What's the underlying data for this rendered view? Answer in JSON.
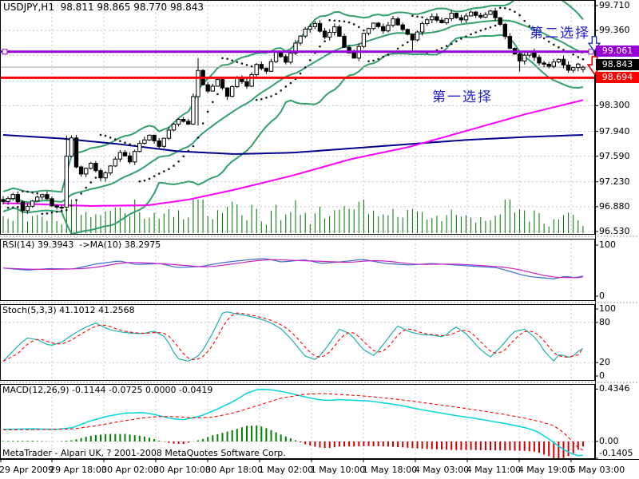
{
  "title": "USDJPY,H1  98.811 98.865 98.770 98.843",
  "copyright": "MetaTrader - Alpari UK, ? 2001-2008 MetaQuotes Software Corp.",
  "annotations": {
    "second_choice": "第二选择",
    "first_choice": "第一选择"
  },
  "badges": {
    "resistance": "99.061",
    "bid": "98.843",
    "support": "98.694"
  },
  "panels": {
    "rsi": {
      "label": "RSI(14) 39.3943  ->MA(10) 38.2975",
      "scale": [
        {
          "text": "100",
          "v": 100
        },
        {
          "text": "0",
          "v": 0
        }
      ]
    },
    "stoch": {
      "label": "Stoch(5,3,3) 41.1012 41.2568",
      "scale": [
        {
          "text": "100",
          "v": 100
        },
        {
          "text": "80",
          "v": 80
        },
        {
          "text": "20",
          "v": 20
        },
        {
          "text": "0",
          "v": 0
        }
      ]
    },
    "macd": {
      "label": "MACD(12,26,9) -0.1144 -0.0725 0.0000 -0.0419",
      "scale": [
        {
          "text": "0.4346",
          "v": 0.4346
        },
        {
          "text": "0.00",
          "v": 0
        },
        {
          "text": "-0.1405",
          "v": -0.1405
        }
      ]
    }
  },
  "price_axis": [
    {
      "text": "99.710",
      "value": 99.71
    },
    {
      "text": "99.360",
      "value": 99.36
    },
    {
      "text": "98.300",
      "value": 98.3
    },
    {
      "text": "97.940",
      "value": 97.94
    },
    {
      "text": "97.590",
      "value": 97.59
    },
    {
      "text": "97.230",
      "value": 97.23
    },
    {
      "text": "96.880",
      "value": 96.88
    },
    {
      "text": "96.530",
      "value": 96.53
    }
  ],
  "time_axis": [
    "29 Apr 2009",
    "29 Apr 18:00",
    "30 Apr 02:00",
    "30 Apr 10:00",
    "30 Apr 18:00",
    "1 May 02:00",
    "1 May 10:00",
    "1 May 18:00",
    "4 May 03:00",
    "4 May 11:00",
    "4 May 19:00",
    "5 May 03:00"
  ],
  "colors": {
    "grid": "#c4c4c4",
    "band": "#33a06c",
    "ma_slow": "#00008B",
    "ma_fast": "#FF00FF",
    "volume": "#007000",
    "sar": "#1a1a1a",
    "resistance_line": "#9400D3",
    "support_line": "#FF0000",
    "bid_line": "#a8a8a8",
    "rsi_line": "#3b6ec8",
    "rsi_ma": "#c820c8",
    "stoch_k": "#20B2AA",
    "stoch_d": "#FF0000",
    "macd_line": "#00d5e0",
    "macd_signal": "#FF0000",
    "hist_up": "#008000",
    "hist_down": "#cc0000",
    "annotation": "#1f1fd0",
    "arrow_blue": "#2233aa",
    "arrow_red": "#e00000"
  },
  "chart_data": {
    "type": "candlestick",
    "symbol": "USDJPY",
    "timeframe": "H1",
    "last_bar_ohlc": {
      "open": 98.811,
      "high": 98.865,
      "low": 98.77,
      "close": 98.843
    },
    "ylim": [
      96.53,
      99.71
    ],
    "price_gridlines": [
      99.71,
      99.36,
      99.01,
      98.65,
      98.3,
      97.94,
      97.59,
      97.23,
      96.88,
      96.53
    ],
    "bars": 120,
    "close_anchors": [
      [
        0,
        96.95
      ],
      [
        2,
        97.05
      ],
      [
        4,
        96.82
      ],
      [
        6,
        96.95
      ],
      [
        8,
        97.06
      ],
      [
        10,
        96.9
      ],
      [
        12,
        96.86
      ],
      [
        13,
        97.6
      ],
      [
        14,
        97.85
      ],
      [
        15,
        97.45
      ],
      [
        16,
        97.35
      ],
      [
        18,
        97.48
      ],
      [
        20,
        97.28
      ],
      [
        22,
        97.45
      ],
      [
        24,
        97.65
      ],
      [
        26,
        97.52
      ],
      [
        28,
        97.78
      ],
      [
        30,
        97.88
      ],
      [
        32,
        97.72
      ],
      [
        34,
        97.95
      ],
      [
        36,
        98.12
      ],
      [
        38,
        98.05
      ],
      [
        40,
        98.8
      ],
      [
        41,
        98.6
      ],
      [
        42,
        98.5
      ],
      [
        44,
        98.66
      ],
      [
        46,
        98.44
      ],
      [
        48,
        98.7
      ],
      [
        50,
        98.58
      ],
      [
        52,
        98.88
      ],
      [
        54,
        98.78
      ],
      [
        56,
        99.06
      ],
      [
        58,
        98.92
      ],
      [
        60,
        99.18
      ],
      [
        62,
        99.38
      ],
      [
        64,
        99.46
      ],
      [
        66,
        99.26
      ],
      [
        68,
        99.42
      ],
      [
        70,
        99.12
      ],
      [
        72,
        98.96
      ],
      [
        74,
        99.32
      ],
      [
        76,
        99.46
      ],
      [
        78,
        99.36
      ],
      [
        80,
        99.52
      ],
      [
        82,
        99.38
      ],
      [
        84,
        99.22
      ],
      [
        86,
        99.46
      ],
      [
        88,
        99.56
      ],
      [
        90,
        99.46
      ],
      [
        92,
        99.6
      ],
      [
        94,
        99.5
      ],
      [
        96,
        99.62
      ],
      [
        98,
        99.54
      ],
      [
        100,
        99.64
      ],
      [
        102,
        99.44
      ],
      [
        104,
        99.12
      ],
      [
        106,
        98.94
      ],
      [
        108,
        99.06
      ],
      [
        110,
        98.9
      ],
      [
        112,
        98.85
      ],
      [
        114,
        98.96
      ],
      [
        116,
        98.8
      ],
      [
        118,
        98.88
      ],
      [
        119,
        98.843
      ]
    ],
    "forced_wicks": {
      "13": {
        "l": 97.1,
        "h": 97.88
      },
      "40": {
        "l": 98.02,
        "h": 98.97
      },
      "84": {
        "l": 99.05
      },
      "106": {
        "l": 98.78
      }
    },
    "hlines": [
      {
        "name": "resistance",
        "price": 99.061,
        "width": 3
      },
      {
        "name": "support",
        "price": 98.694,
        "width": 3
      },
      {
        "name": "bid",
        "price": 98.843,
        "width": 1
      }
    ],
    "bollinger": {
      "period": 20,
      "deviation": 2
    },
    "ma_slow_anchors": [
      [
        0,
        97.89
      ],
      [
        0.1,
        97.84
      ],
      [
        0.2,
        97.76
      ],
      [
        0.3,
        97.66
      ],
      [
        0.4,
        97.62
      ],
      [
        0.5,
        97.64
      ],
      [
        0.6,
        97.7
      ],
      [
        0.7,
        97.76
      ],
      [
        0.8,
        97.82
      ],
      [
        0.9,
        97.86
      ],
      [
        1,
        97.89
      ]
    ],
    "ma_fast_anchors": [
      [
        0,
        96.93
      ],
      [
        0.15,
        96.89
      ],
      [
        0.25,
        96.9
      ],
      [
        0.32,
        96.98
      ],
      [
        0.4,
        97.12
      ],
      [
        0.5,
        97.32
      ],
      [
        0.6,
        97.55
      ],
      [
        0.7,
        97.72
      ],
      [
        0.8,
        97.95
      ],
      [
        0.9,
        98.18
      ],
      [
        1,
        98.38
      ]
    ],
    "rsi": {
      "last": 39.3943,
      "ma_last": 38.2975,
      "range": [
        0,
        100
      ],
      "anchors": [
        [
          0,
          55
        ],
        [
          0.04,
          51
        ],
        [
          0.08,
          54
        ],
        [
          0.12,
          53
        ],
        [
          0.16,
          63
        ],
        [
          0.2,
          69
        ],
        [
          0.23,
          62
        ],
        [
          0.27,
          64
        ],
        [
          0.3,
          56
        ],
        [
          0.34,
          58
        ],
        [
          0.38,
          66
        ],
        [
          0.42,
          71
        ],
        [
          0.45,
          74
        ],
        [
          0.48,
          67
        ],
        [
          0.52,
          71
        ],
        [
          0.55,
          64
        ],
        [
          0.58,
          67
        ],
        [
          0.62,
          72
        ],
        [
          0.66,
          64
        ],
        [
          0.7,
          61
        ],
        [
          0.74,
          64
        ],
        [
          0.78,
          61
        ],
        [
          0.82,
          58
        ],
        [
          0.85,
          56
        ],
        [
          0.87,
          50
        ],
        [
          0.89,
          43
        ],
        [
          0.91,
          38
        ],
        [
          0.93,
          36
        ],
        [
          0.95,
          34
        ],
        [
          0.97,
          39
        ],
        [
          0.985,
          36
        ],
        [
          1,
          39.4
        ]
      ]
    },
    "stoch": {
      "last_k": 41.1012,
      "last_d": 41.2568,
      "levels": [
        80,
        20
      ],
      "range": [
        0,
        100
      ],
      "k_anchors": [
        [
          0,
          22
        ],
        [
          0.02,
          40
        ],
        [
          0.04,
          57
        ],
        [
          0.06,
          54
        ],
        [
          0.08,
          45
        ],
        [
          0.1,
          50
        ],
        [
          0.12,
          62
        ],
        [
          0.14,
          72
        ],
        [
          0.16,
          79
        ],
        [
          0.18,
          70
        ],
        [
          0.2,
          66
        ],
        [
          0.22,
          64
        ],
        [
          0.24,
          63
        ],
        [
          0.26,
          67
        ],
        [
          0.28,
          58
        ],
        [
          0.3,
          26
        ],
        [
          0.32,
          22
        ],
        [
          0.34,
          32
        ],
        [
          0.36,
          62
        ],
        [
          0.38,
          97
        ],
        [
          0.4,
          93
        ],
        [
          0.42,
          90
        ],
        [
          0.44,
          86
        ],
        [
          0.46,
          80
        ],
        [
          0.48,
          70
        ],
        [
          0.5,
          52
        ],
        [
          0.52,
          30
        ],
        [
          0.54,
          24
        ],
        [
          0.56,
          45
        ],
        [
          0.58,
          70
        ],
        [
          0.6,
          62
        ],
        [
          0.62,
          40
        ],
        [
          0.64,
          30
        ],
        [
          0.66,
          52
        ],
        [
          0.68,
          75
        ],
        [
          0.7,
          66
        ],
        [
          0.72,
          62
        ],
        [
          0.74,
          61
        ],
        [
          0.76,
          58
        ],
        [
          0.78,
          74
        ],
        [
          0.8,
          62
        ],
        [
          0.82,
          42
        ],
        [
          0.84,
          28
        ],
        [
          0.86,
          45
        ],
        [
          0.88,
          66
        ],
        [
          0.9,
          70
        ],
        [
          0.92,
          55
        ],
        [
          0.935,
          35
        ],
        [
          0.95,
          22
        ],
        [
          0.96,
          34
        ],
        [
          0.97,
          29
        ],
        [
          0.98,
          27
        ],
        [
          0.99,
          36
        ],
        [
          1,
          41.1
        ]
      ]
    },
    "macd": {
      "last": -0.1144,
      "signal_last": -0.0725,
      "osma_last": -0.0419,
      "ymax": 0.4346,
      "ymin": -0.1405,
      "anchors": [
        [
          0,
          0.1
        ],
        [
          0.05,
          0.105
        ],
        [
          0.09,
          0.1
        ],
        [
          0.12,
          0.115
        ],
        [
          0.15,
          0.17
        ],
        [
          0.18,
          0.21
        ],
        [
          0.21,
          0.235
        ],
        [
          0.24,
          0.24
        ],
        [
          0.26,
          0.225
        ],
        [
          0.29,
          0.19
        ],
        [
          0.31,
          0.18
        ],
        [
          0.34,
          0.21
        ],
        [
          0.37,
          0.27
        ],
        [
          0.4,
          0.34
        ],
        [
          0.42,
          0.4
        ],
        [
          0.44,
          0.433
        ],
        [
          0.46,
          0.43
        ],
        [
          0.48,
          0.415
        ],
        [
          0.5,
          0.395
        ],
        [
          0.52,
          0.37
        ],
        [
          0.54,
          0.35
        ],
        [
          0.56,
          0.34
        ],
        [
          0.58,
          0.348
        ],
        [
          0.6,
          0.342
        ],
        [
          0.63,
          0.336
        ],
        [
          0.66,
          0.318
        ],
        [
          0.69,
          0.295
        ],
        [
          0.72,
          0.265
        ],
        [
          0.75,
          0.24
        ],
        [
          0.78,
          0.215
        ],
        [
          0.81,
          0.195
        ],
        [
          0.84,
          0.17
        ],
        [
          0.87,
          0.145
        ],
        [
          0.9,
          0.115
        ],
        [
          0.92,
          0.085
        ],
        [
          0.94,
          0.025
        ],
        [
          0.955,
          -0.03
        ],
        [
          0.97,
          -0.075
        ],
        [
          0.98,
          -0.1
        ],
        [
          0.99,
          -0.118
        ],
        [
          1,
          -0.1144
        ]
      ],
      "signal_anchors": [
        [
          0,
          0.096
        ],
        [
          0.08,
          0.1
        ],
        [
          0.12,
          0.104
        ],
        [
          0.16,
          0.13
        ],
        [
          0.2,
          0.165
        ],
        [
          0.24,
          0.195
        ],
        [
          0.27,
          0.208
        ],
        [
          0.3,
          0.205
        ],
        [
          0.33,
          0.196
        ],
        [
          0.36,
          0.2
        ],
        [
          0.4,
          0.24
        ],
        [
          0.44,
          0.3
        ],
        [
          0.48,
          0.36
        ],
        [
          0.52,
          0.392
        ],
        [
          0.55,
          0.398
        ],
        [
          0.58,
          0.39
        ],
        [
          0.62,
          0.378
        ],
        [
          0.66,
          0.36
        ],
        [
          0.7,
          0.338
        ],
        [
          0.74,
          0.312
        ],
        [
          0.78,
          0.286
        ],
        [
          0.82,
          0.258
        ],
        [
          0.86,
          0.228
        ],
        [
          0.9,
          0.193
        ],
        [
          0.93,
          0.16
        ],
        [
          0.95,
          0.13
        ],
        [
          0.965,
          0.08
        ],
        [
          0.98,
          0.01
        ],
        [
          0.99,
          -0.045
        ],
        [
          1,
          -0.0725
        ]
      ]
    }
  }
}
